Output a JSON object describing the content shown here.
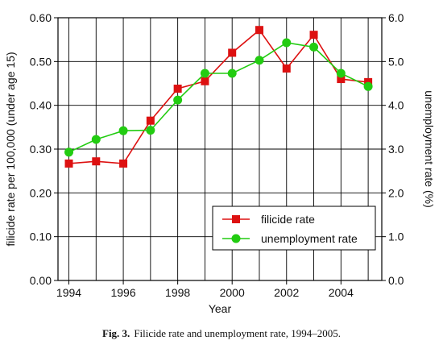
{
  "chart_data": {
    "type": "line",
    "xlabel": "Year",
    "ylabel_left": "filicide rate per 100,000 (under age 15)",
    "ylabel_right": "unemployment rate (%)",
    "xlim": [
      1993.6,
      2005.5
    ],
    "ylim_left": [
      0.0,
      0.6
    ],
    "ylim_right": [
      0.0,
      6.0
    ],
    "x_ticks": [
      {
        "value": 1994,
        "label": "1994"
      },
      {
        "value": 1996,
        "label": "1996"
      },
      {
        "value": 1998,
        "label": "1998"
      },
      {
        "value": 2000,
        "label": "2000"
      },
      {
        "value": 2002,
        "label": "2002"
      },
      {
        "value": 2004,
        "label": "2004"
      }
    ],
    "y_ticks_left": [
      {
        "value": 0.0,
        "label": "0.00"
      },
      {
        "value": 0.1,
        "label": "0.10"
      },
      {
        "value": 0.2,
        "label": "0.20"
      },
      {
        "value": 0.3,
        "label": "0.30"
      },
      {
        "value": 0.4,
        "label": "0.40"
      },
      {
        "value": 0.5,
        "label": "0.50"
      },
      {
        "value": 0.6,
        "label": "0.60"
      }
    ],
    "y_ticks_right": [
      {
        "value": 0.0,
        "label": "0.0"
      },
      {
        "value": 1.0,
        "label": "1.0"
      },
      {
        "value": 2.0,
        "label": "2.0"
      },
      {
        "value": 3.0,
        "label": "3.0"
      },
      {
        "value": 4.0,
        "label": "4.0"
      },
      {
        "value": 5.0,
        "label": "5.0"
      },
      {
        "value": 6.0,
        "label": "6.0"
      }
    ],
    "x_grid_values": [
      1994,
      1995,
      1996,
      1997,
      1998,
      1999,
      2000,
      2001,
      2002,
      2003,
      2004,
      2005
    ],
    "grid": true,
    "legend_position": "bottom-right",
    "series": [
      {
        "name": "filicide rate",
        "axis": "left",
        "color": "#dd1111",
        "marker": "square",
        "x": [
          1994,
          1995,
          1996,
          1997,
          1998,
          1999,
          2000,
          2001,
          2002,
          2003,
          2004,
          2005
        ],
        "y": [
          0.267,
          0.272,
          0.267,
          0.365,
          0.438,
          0.455,
          0.52,
          0.572,
          0.484,
          0.561,
          0.46,
          0.453
        ]
      },
      {
        "name": "unemployment rate",
        "axis": "right",
        "color": "#22cc11",
        "marker": "circle",
        "x": [
          1994,
          1995,
          1996,
          1997,
          1998,
          1999,
          2000,
          2001,
          2002,
          2003,
          2004,
          2005
        ],
        "y": [
          2.93,
          3.22,
          3.42,
          3.43,
          4.12,
          4.73,
          4.73,
          5.03,
          5.43,
          5.33,
          4.73,
          4.43
        ]
      }
    ]
  },
  "caption": {
    "prefix": "Fig. 3.",
    "text": "Filicide rate and unemployment rate, 1994–2005."
  }
}
